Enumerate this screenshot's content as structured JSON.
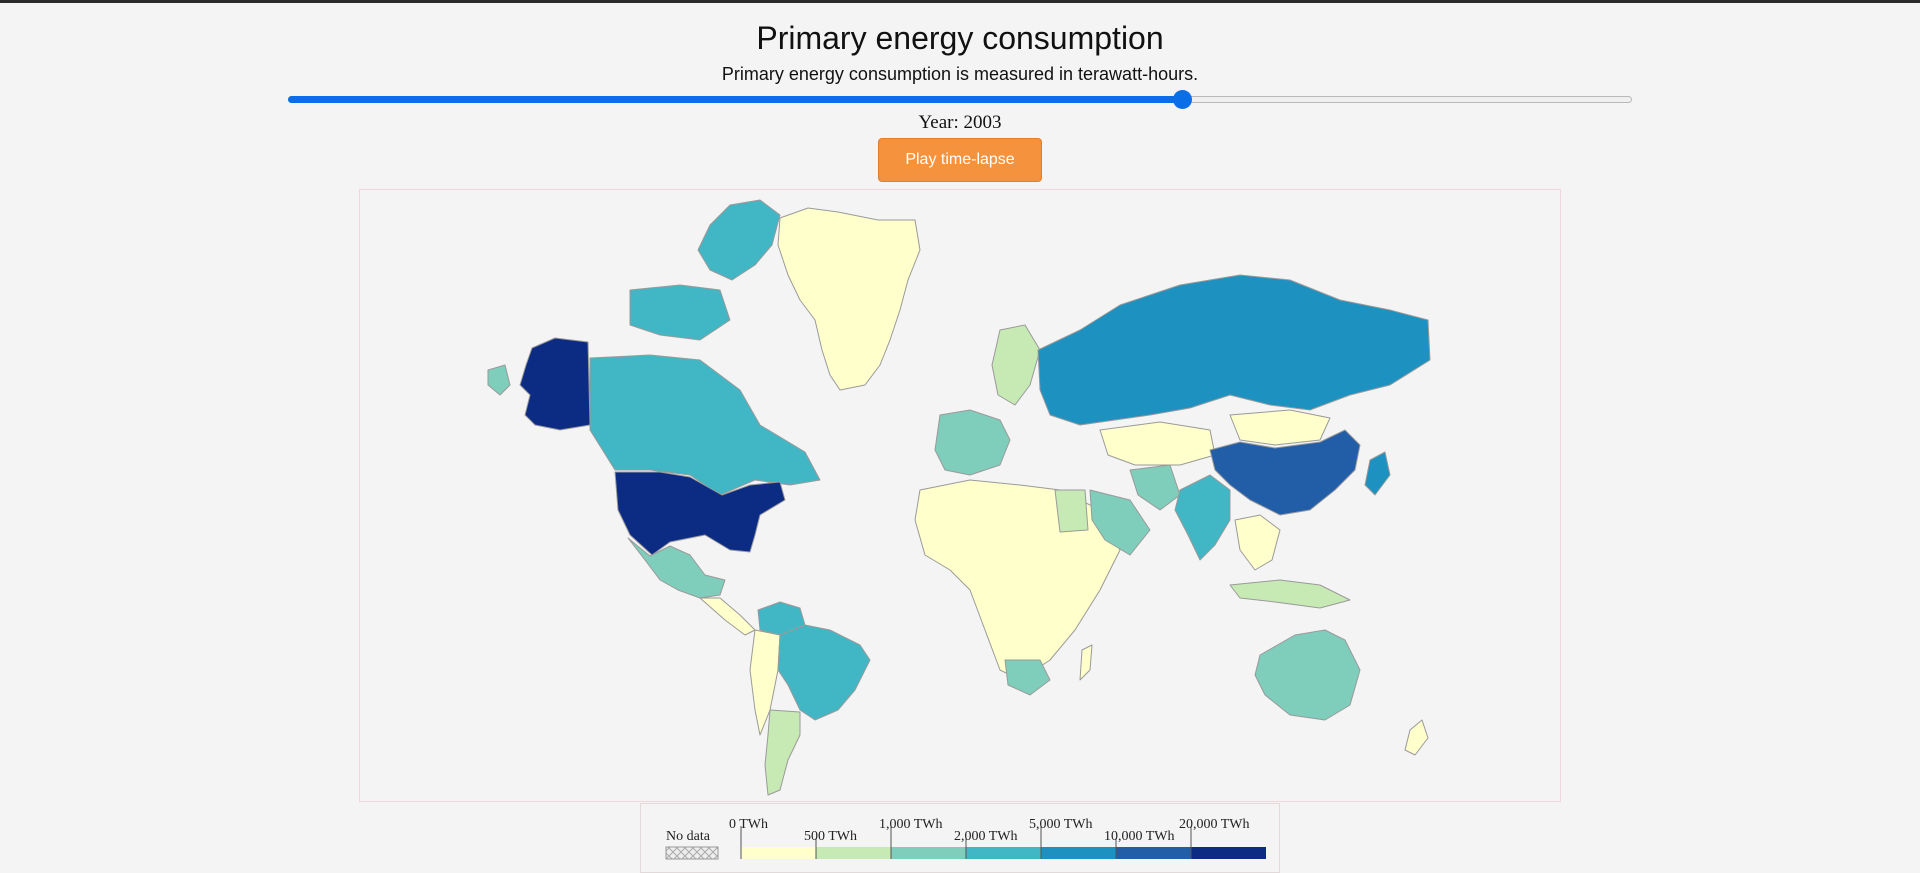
{
  "header": {
    "title": "Primary energy consumption",
    "subtitle": "Primary energy consumption is measured in terawatt-hours."
  },
  "slider": {
    "value_fraction": 0.665
  },
  "year_label": "Year: 2003",
  "play_button": {
    "label": "Play time-lapse",
    "color": "#f5923e"
  },
  "legend": {
    "no_data_label": "No data",
    "bins": [
      {
        "label": "0 TWh",
        "color": "#ffffcc"
      },
      {
        "label": "500 TWh",
        "color": "#c7e9b4"
      },
      {
        "label": "1,000 TWh",
        "color": "#7fcdbb"
      },
      {
        "label": "2,000 TWh",
        "color": "#41b6c4"
      },
      {
        "label": "5,000 TWh",
        "color": "#1d91c0"
      },
      {
        "label": "10,000 TWh",
        "color": "#225ea8"
      },
      {
        "label": "20,000 TWh",
        "color": "#0c2c84"
      }
    ]
  },
  "map": {
    "regions": [
      {
        "name": "Greenland",
        "bin": 0
      },
      {
        "name": "Canada",
        "bin": 3
      },
      {
        "name": "Alaska (United States)",
        "bin": 6
      },
      {
        "name": "United States",
        "bin": 6
      },
      {
        "name": "Mexico",
        "bin": 2
      },
      {
        "name": "Brazil",
        "bin": 3
      },
      {
        "name": "Argentina",
        "bin": 1
      },
      {
        "name": "Russia",
        "bin": 4
      },
      {
        "name": "China",
        "bin": 5
      },
      {
        "name": "India",
        "bin": 3
      },
      {
        "name": "Australia",
        "bin": 2
      },
      {
        "name": "South Africa",
        "bin": 2
      },
      {
        "name": "Saudi Arabia",
        "bin": 2
      },
      {
        "name": "Japan",
        "bin": 4
      },
      {
        "name": "Iran",
        "bin": 2
      },
      {
        "name": "Egypt",
        "bin": 1
      }
    ]
  }
}
